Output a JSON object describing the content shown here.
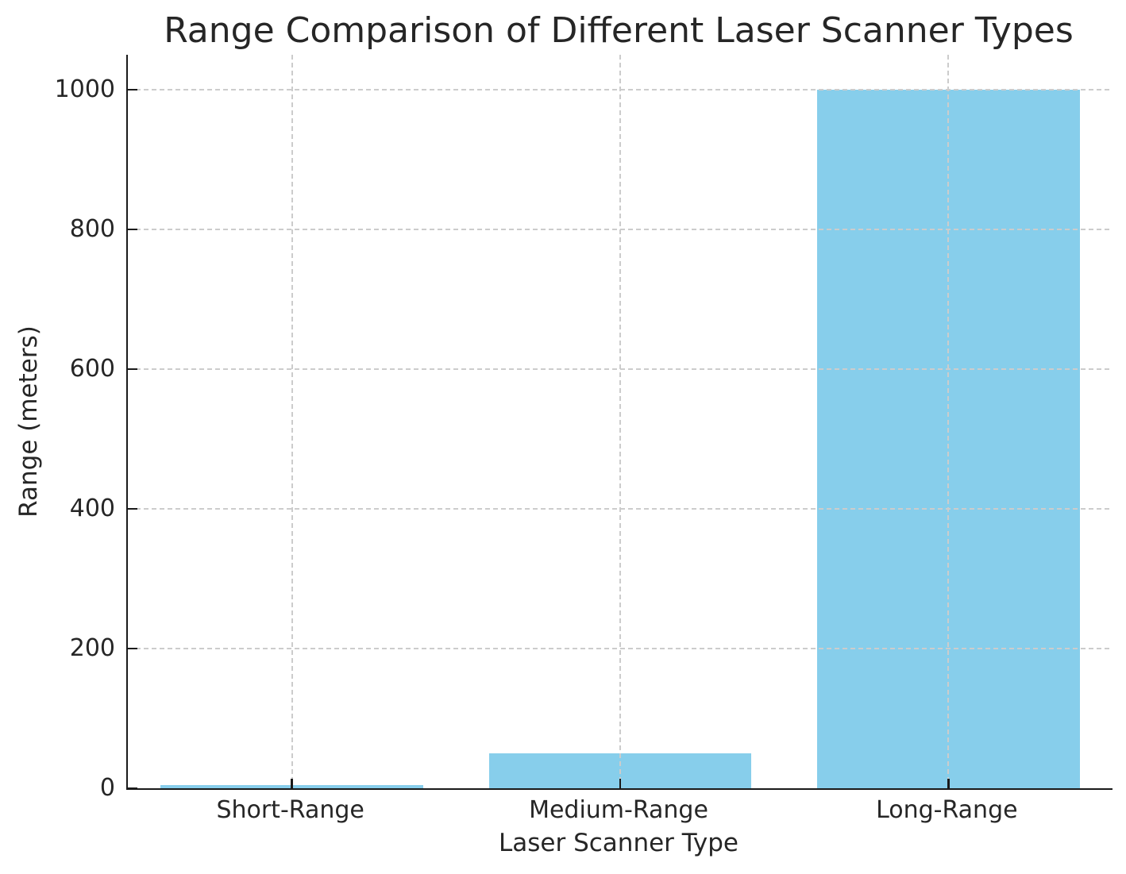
{
  "chart_data": {
    "type": "bar",
    "title": "Range Comparison of Different Laser Scanner Types",
    "xlabel": "Laser Scanner Type",
    "ylabel": "Range (meters)",
    "categories": [
      "Short-Range",
      "Medium-Range",
      "Long-Range"
    ],
    "values": [
      5,
      50,
      1000
    ],
    "yticks": [
      0,
      200,
      400,
      600,
      800,
      1000
    ],
    "ylim": [
      0,
      1050
    ],
    "bar_color": "#87CEEB",
    "bar_width_fraction": 0.8,
    "grid": {
      "show": true,
      "axis": "both",
      "style": "dashed",
      "color": "#cccccc",
      "on_top": true
    },
    "legend": "none",
    "spine_color": "#1a1a1a",
    "text_color": "#262626"
  }
}
